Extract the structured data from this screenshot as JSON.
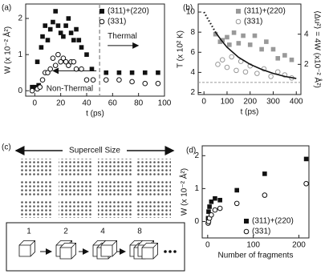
{
  "chart_data": [
    {
      "type": "scatter",
      "label": "(a)",
      "x_label": "t (ps)",
      "y_label": "W (x 10⁻² Å²)",
      "xlim": [
        -7,
        100
      ],
      "xticks": [
        0,
        20,
        40,
        60,
        80,
        100
      ],
      "ylim": [
        -0.15,
        2.4
      ],
      "yticks": [
        0,
        1,
        2
      ],
      "vline": 50,
      "legend": "upper right",
      "annotations": [
        "Thermal",
        "Non-Thermal"
      ],
      "series": [
        {
          "name": "(311)+(220)",
          "color": "#111111",
          "marker": "square",
          "x": [
            -2,
            0,
            2,
            3,
            5,
            6,
            8,
            10,
            12,
            14,
            16,
            18,
            20,
            22,
            24,
            26,
            28,
            30,
            32,
            34,
            36,
            40,
            44,
            55,
            65,
            75,
            85,
            95
          ],
          "values": [
            0.1,
            0.1,
            0.8,
            0.15,
            1.2,
            1.5,
            1.8,
            1.4,
            1.7,
            1.9,
            2.2,
            1.8,
            1.6,
            1.5,
            1.8,
            2.0,
            1.6,
            1.4,
            1.7,
            1.4,
            1.2,
            1.0,
            0.6,
            0.5,
            0.5,
            0.5,
            0.5,
            0.5
          ]
        },
        {
          "name": "(331)",
          "color": "#111111",
          "marker": "open-circle",
          "x": [
            -2,
            2,
            4,
            6,
            8,
            10,
            12,
            14,
            16,
            18,
            20,
            22,
            24,
            26,
            28,
            30,
            32,
            36,
            40,
            45,
            55,
            65,
            75,
            85,
            95
          ],
          "values": [
            0,
            0.05,
            0.1,
            0.3,
            0.5,
            0.5,
            0.6,
            0.9,
            0.7,
            1.0,
            0.8,
            0.9,
            0.8,
            0.7,
            0.8,
            0.8,
            0.6,
            0.6,
            0.3,
            0.3,
            0.3,
            0.3,
            0.25,
            0.2,
            0.2
          ]
        }
      ]
    },
    {
      "type": "scatter",
      "label": "(b)",
      "x_label": "t (ps)",
      "y_label": "T (x 10² K)",
      "y2_label": "⟨Δu²⟩ = 4W (x10⁻² Å²)",
      "xlim": [
        -25,
        420
      ],
      "xticks": [
        0,
        100,
        200,
        300,
        400
      ],
      "ylim": [
        1.8,
        10.8
      ],
      "yticks": [
        2,
        4,
        6,
        8,
        10
      ],
      "y2lim": [
        0,
        6
      ],
      "y2ticks": [
        2,
        4
      ],
      "hline": 3,
      "legend": "upper right",
      "series": [
        {
          "name": "(311)+(220)",
          "color": "#999999",
          "marker": "square",
          "axis": "y2",
          "x": [
            50,
            70,
            80,
            100,
            110,
            130,
            150,
            170,
            200,
            220,
            250,
            270,
            300,
            320,
            350,
            380
          ],
          "values": [
            4.0,
            3.5,
            3.6,
            3.8,
            3.3,
            4.1,
            3.4,
            3.9,
            3.3,
            3.9,
            3.0,
            3.5,
            3.0,
            2.4,
            2.6,
            2.3
          ]
        },
        {
          "name": "(331)",
          "color": "#999999",
          "marker": "open-circle",
          "axis": "y2",
          "x": [
            60,
            80,
            100,
            120,
            140,
            160,
            180,
            200,
            230,
            260,
            290,
            320,
            350,
            380
          ],
          "values": [
            2.0,
            2.3,
            1.8,
            2.5,
            1.6,
            2.2,
            1.5,
            1.9,
            1.4,
            1.7,
            1.2,
            1.5,
            1.3,
            1.1
          ]
        },
        {
          "color": "#111111",
          "marker": "line",
          "dash": "dotted",
          "x": [
            0,
            25,
            50
          ],
          "values": [
            10,
            9,
            8
          ]
        },
        {
          "color": "#111111",
          "marker": "line",
          "dash": "solid",
          "x": [
            50,
            75,
            100,
            150,
            200,
            250,
            300,
            350,
            400
          ],
          "values": [
            8,
            7.2,
            6.5,
            5.5,
            4.8,
            4.3,
            3.9,
            3.6,
            3.4
          ]
        }
      ]
    },
    {
      "type": "diagram",
      "label": "(c)",
      "title": "Supercell Size",
      "steps": [
        "1",
        "2",
        "4",
        "8"
      ]
    },
    {
      "type": "scatter",
      "label": "(d)",
      "x_label": "Number of fragments",
      "y_label": "W (x 10⁻² Å²)",
      "xlim": [
        -12,
        222
      ],
      "xticks": [
        0,
        100,
        200
      ],
      "ylim": [
        -0.5,
        2.3
      ],
      "yticks": [
        0,
        1,
        2
      ],
      "legend": "lower right",
      "series": [
        {
          "name": "(311)+(220)",
          "color": "#111111",
          "marker": "square",
          "x": [
            1,
            2,
            4,
            8,
            16,
            27,
            64,
            125,
            216
          ],
          "values": [
            0.1,
            0.3,
            0.45,
            0.6,
            0.7,
            0.65,
            0.95,
            1.45,
            1.9
          ]
        },
        {
          "name": "(331)",
          "color": "#111111",
          "marker": "open-circle",
          "x": [
            1,
            2,
            4,
            8,
            16,
            27,
            64,
            125,
            216
          ],
          "values": [
            -0.05,
            0,
            0.1,
            0.2,
            0.35,
            0.4,
            0.55,
            0.8,
            1.15
          ]
        }
      ]
    }
  ]
}
